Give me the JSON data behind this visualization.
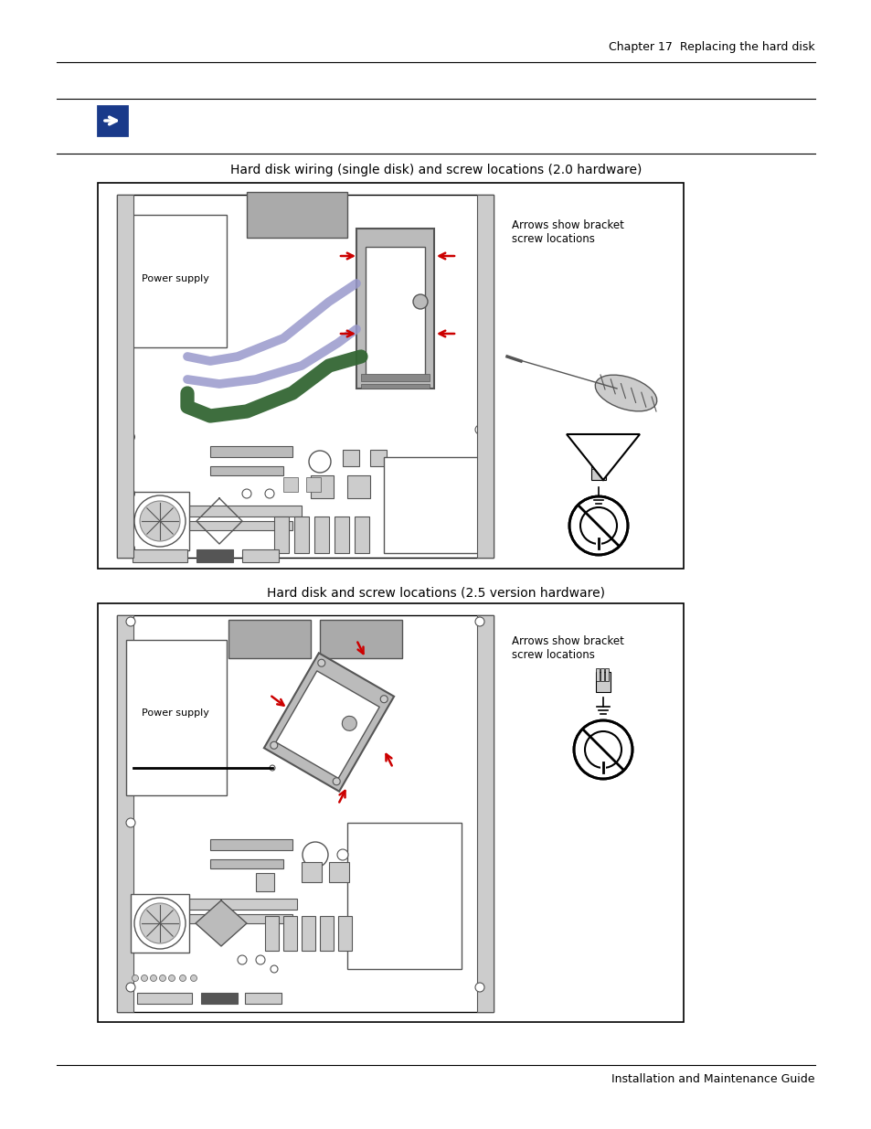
{
  "page_title_right": "Chapter 17  Replacing the hard disk",
  "footer_right": "Installation and Maintenance Guide",
  "fig1_title": "Hard disk wiring (single disk) and screw locations (2.0 hardware)",
  "fig2_title": "Hard disk and screw locations (2.5 version hardware)",
  "label_power_supply": "Power supply",
  "label_arrows_bracket": "Arrows show bracket\nscrew locations",
  "bg_color": "#ffffff",
  "wire_blue": "#9999cc",
  "wire_green": "#336633",
  "arrow_red": "#cc0000",
  "note_icon_color": "#1a3a8a",
  "gray_dark": "#555555",
  "gray_med": "#888888",
  "gray_light": "#bbbbbb",
  "gray_lighter": "#cccccc",
  "gray_fill": "#aaaaaa"
}
